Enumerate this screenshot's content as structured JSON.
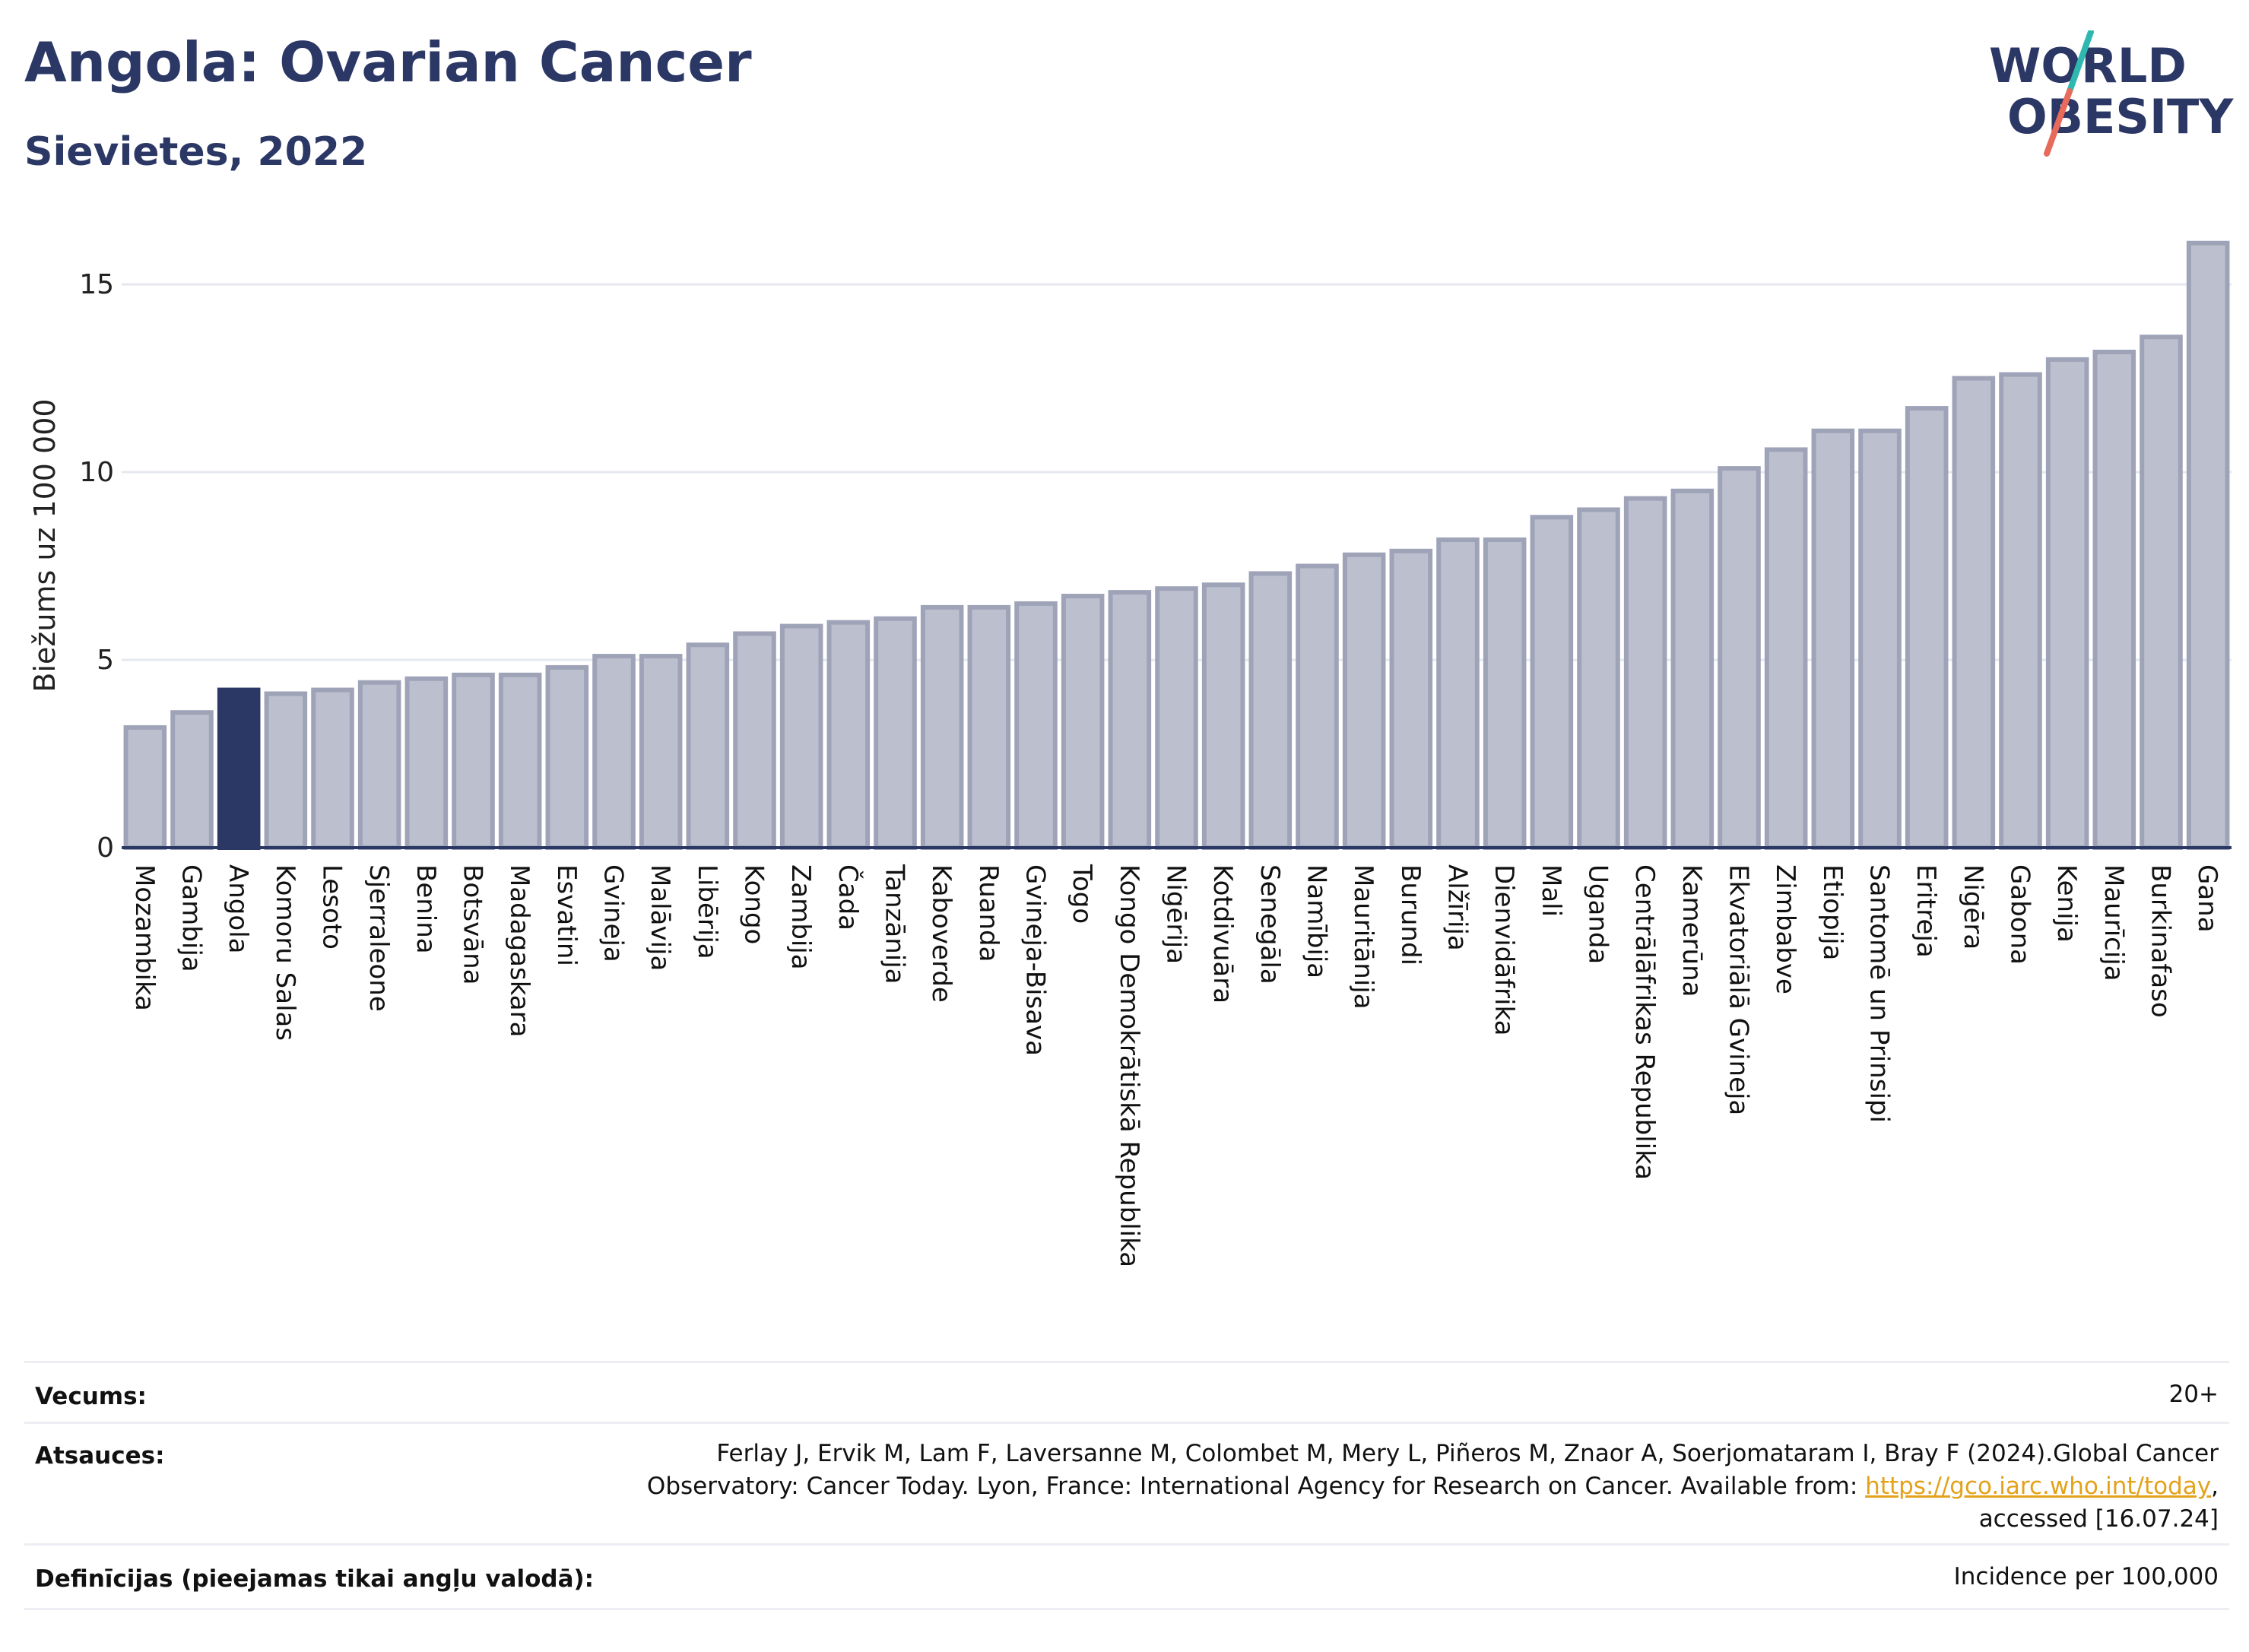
{
  "header": {
    "title": "Angola: Ovarian Cancer",
    "subtitle": "Sievietes, 2022"
  },
  "logo": {
    "line1": "WORLD",
    "line2": "OBESITY",
    "colors": {
      "text": "#2b3764",
      "slash_top": "#2fb8b0",
      "slash_bottom": "#e86a5a"
    }
  },
  "chart_data": {
    "type": "bar",
    "ylabel": "Biežums uz 100 000",
    "ylim": [
      0,
      16.5
    ],
    "yticks": [
      0,
      5,
      10,
      15
    ],
    "grid": true,
    "highlight": "Angola",
    "colors": {
      "bar": "#bcc0ce",
      "bar_edge": "#9ea3b8",
      "highlight": "#2b3764",
      "axis": "#2b3764",
      "grid": "#e6e8ef"
    },
    "categories": [
      "Mozambika",
      "Gambija",
      "Angola",
      "Komoru Salas",
      "Lesoto",
      "Sjerraleone",
      "Benina",
      "Botsvāna",
      "Madagaskara",
      "Esvatini",
      "Gvineja",
      "Malāvija",
      "Libērija",
      "Kongo",
      "Zambija",
      "Čada",
      "Tanzānija",
      "Kaboverde",
      "Ruanda",
      "Gvineja-Bisava",
      "Togo",
      "Kongo Demokrātiskā Republika",
      "Nigērija",
      "Kotdivuāra",
      "Senegāla",
      "Namībija",
      "Mauritānija",
      "Burundi",
      "Alžīrija",
      "Dienvidāfrika",
      "Mali",
      "Uganda",
      "Centrālāfrikas Republika",
      "Kamerūna",
      "Ekvatoriālā Gvineja",
      "Zimbabve",
      "Etiopija",
      "Santomē un Prinsipi",
      "Eritreja",
      "Nigēra",
      "Gabona",
      "Kenija",
      "Maurīcija",
      "Burkinafaso",
      "Gana"
    ],
    "values": [
      3.2,
      3.6,
      4.2,
      4.1,
      4.2,
      4.4,
      4.5,
      4.6,
      4.6,
      4.8,
      5.1,
      5.1,
      5.4,
      5.7,
      5.9,
      6.0,
      6.1,
      6.4,
      6.4,
      6.5,
      6.7,
      6.8,
      6.9,
      7.0,
      7.3,
      7.5,
      7.8,
      7.9,
      8.2,
      8.2,
      8.8,
      9.0,
      9.3,
      9.5,
      10.1,
      10.6,
      11.1,
      11.1,
      11.7,
      12.5,
      12.6,
      13.0,
      13.2,
      13.6,
      16.1
    ]
  },
  "footer": {
    "age_label": "Vecums:",
    "age_value": "20+",
    "sources_label": "Atsauces:",
    "sources_line1": "Ferlay J, Ervik M, Lam F, Laversanne M, Colombet M, Mery L, Piñeros M, Znaor A, Soerjomataram I, Bray F (2024).Global Cancer",
    "sources_line2_pre": "Observatory: Cancer Today. Lyon, France: International Agency for Research on Cancer. Available from: ",
    "sources_link": "https://gco.iarc.who.int/today",
    "sources_line2_post": ",",
    "sources_line3": "accessed [16.07.24]",
    "definitions_label": "Definīcijas (pieejamas tikai angļu valodā):",
    "definitions_value": "Incidence per 100,000"
  }
}
